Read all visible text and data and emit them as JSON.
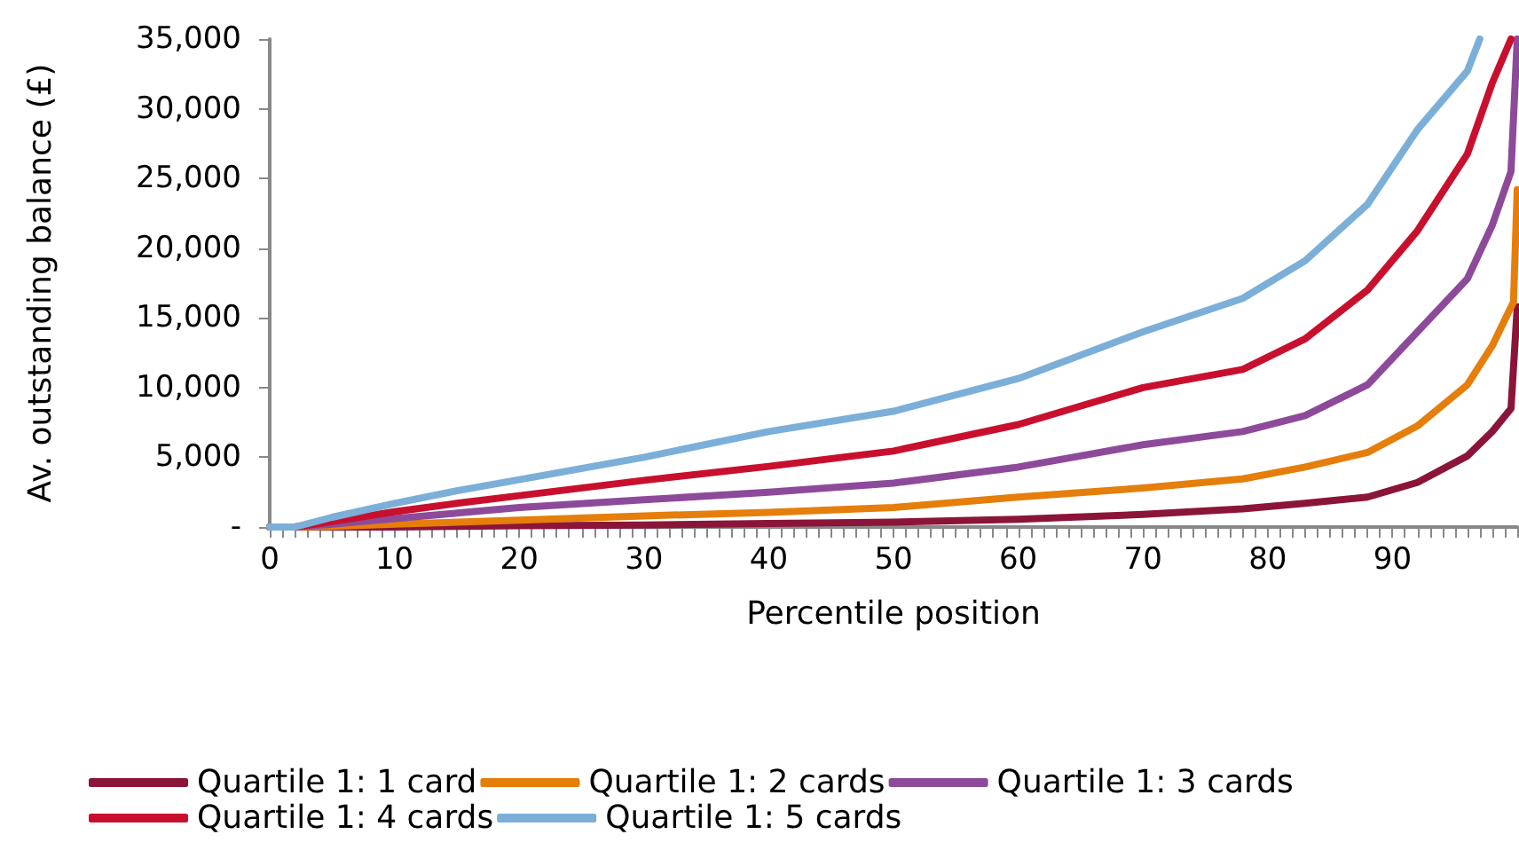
{
  "chart_data": {
    "type": "line",
    "xlabel": "Percentile position",
    "ylabel": "Av. outstanding balance (£)",
    "xlim": [
      0,
      100
    ],
    "xticks": [
      0,
      {
        "value": 1,
        "label": null
      },
      {
        "value": 2,
        "label": null
      },
      {
        "value": 3,
        "label": null
      },
      {
        "value": 4,
        "label": null
      },
      {
        "value": 5,
        "label": null
      },
      {
        "value": 6,
        "label": null
      },
      {
        "value": 7,
        "label": null
      },
      {
        "value": 8,
        "label": null
      },
      {
        "value": 9,
        "label": null
      },
      10,
      {
        "value": 11,
        "label": null
      },
      {
        "value": 12,
        "label": null
      },
      {
        "value": 13,
        "label": null
      },
      {
        "value": 14,
        "label": null
      },
      {
        "value": 15,
        "label": null
      },
      {
        "value": 16,
        "label": null
      },
      {
        "value": 17,
        "label": null
      },
      {
        "value": 18,
        "label": null
      },
      {
        "value": 19,
        "label": null
      },
      20,
      {
        "value": 21,
        "label": null
      },
      {
        "value": 22,
        "label": null
      },
      {
        "value": 23,
        "label": null
      },
      {
        "value": 24,
        "label": null
      },
      {
        "value": 25,
        "label": null
      },
      {
        "value": 26,
        "label": null
      },
      {
        "value": 27,
        "label": null
      },
      {
        "value": 28,
        "label": null
      },
      {
        "value": 29,
        "label": null
      },
      30,
      {
        "value": 31,
        "label": null
      },
      {
        "value": 32,
        "label": null
      },
      {
        "value": 33,
        "label": null
      },
      {
        "value": 34,
        "label": null
      },
      {
        "value": 35,
        "label": null
      },
      {
        "value": 36,
        "label": null
      },
      {
        "value": 37,
        "label": null
      },
      {
        "value": 38,
        "label": null
      },
      {
        "value": 39,
        "label": null
      },
      40,
      {
        "value": 41,
        "label": null
      },
      {
        "value": 42,
        "label": null
      },
      {
        "value": 43,
        "label": null
      },
      {
        "value": 44,
        "label": null
      },
      {
        "value": 45,
        "label": null
      },
      {
        "value": 46,
        "label": null
      },
      {
        "value": 47,
        "label": null
      },
      {
        "value": 48,
        "label": null
      },
      {
        "value": 49,
        "label": null
      },
      50,
      {
        "value": 51,
        "label": null
      },
      {
        "value": 52,
        "label": null
      },
      {
        "value": 53,
        "label": null
      },
      {
        "value": 54,
        "label": null
      },
      {
        "value": 55,
        "label": null
      },
      {
        "value": 56,
        "label": null
      },
      {
        "value": 57,
        "label": null
      },
      {
        "value": 58,
        "label": null
      },
      {
        "value": 59,
        "label": null
      },
      60,
      {
        "value": 61,
        "label": null
      },
      {
        "value": 62,
        "label": null
      },
      {
        "value": 63,
        "label": null
      },
      {
        "value": 64,
        "label": null
      },
      {
        "value": 65,
        "label": null
      },
      {
        "value": 66,
        "label": null
      },
      {
        "value": 67,
        "label": null
      },
      {
        "value": 68,
        "label": null
      },
      {
        "value": 69,
        "label": null
      },
      70,
      {
        "value": 71,
        "label": null
      },
      {
        "value": 72,
        "label": null
      },
      {
        "value": 73,
        "label": null
      },
      {
        "value": 74,
        "label": null
      },
      {
        "value": 75,
        "label": null
      },
      {
        "value": 76,
        "label": null
      },
      {
        "value": 77,
        "label": null
      },
      {
        "value": 78,
        "label": null
      },
      {
        "value": 79,
        "label": null
      },
      80,
      {
        "value": 81,
        "label": null
      },
      {
        "value": 82,
        "label": null
      },
      {
        "value": 83,
        "label": null
      },
      {
        "value": 84,
        "label": null
      },
      {
        "value": 85,
        "label": null
      },
      {
        "value": 86,
        "label": null
      },
      {
        "value": 87,
        "label": null
      },
      {
        "value": 88,
        "label": null
      },
      {
        "value": 89,
        "label": null
      },
      90,
      {
        "value": 91,
        "label": null
      },
      {
        "value": 92,
        "label": null
      },
      {
        "value": 93,
        "label": null
      },
      {
        "value": 94,
        "label": null
      },
      {
        "value": 95,
        "label": null
      },
      {
        "value": 96,
        "label": null
      },
      {
        "value": 97,
        "label": null
      },
      {
        "value": 98,
        "label": null
      },
      {
        "value": 99,
        "label": null
      },
      {
        "value": 100,
        "label": null
      }
    ],
    "ylim": [
      0,
      35000
    ],
    "yticks": [
      {
        "value": 0,
        "label": "-"
      },
      {
        "value": 5000,
        "label": "5,000"
      },
      {
        "value": 10000,
        "label": "10,000"
      },
      {
        "value": 15000,
        "label": "15,000"
      },
      {
        "value": 20000,
        "label": "20,000"
      },
      {
        "value": 25000,
        "label": "25,000"
      },
      {
        "value": 30000,
        "label": "30,000"
      },
      {
        "value": 35000,
        "label": "35,000"
      }
    ],
    "grid": false,
    "legend": "bottom",
    "marker": "none",
    "line_style": "solid",
    "series": [
      {
        "name": "Quartile 1: 1 card",
        "color": "#8b1538",
        "x": [
          0,
          2,
          5,
          10,
          15,
          20,
          30,
          40,
          50,
          60,
          70,
          78,
          83,
          88,
          92,
          96,
          98,
          99.5,
          100
        ],
        "values": [
          0,
          0,
          0,
          0,
          50,
          100,
          150,
          250,
          350,
          550,
          900,
          1300,
          1700,
          2150,
          3200,
          5100,
          6850,
          8500,
          15800
        ]
      },
      {
        "name": "Quartile 1: 2 cards",
        "color": "#e57e0a",
        "x": [
          0,
          2,
          5,
          10,
          15,
          20,
          30,
          40,
          50,
          60,
          70,
          78,
          83,
          88,
          92,
          96,
          98,
          99.7,
          100
        ],
        "values": [
          0,
          0,
          50,
          200,
          350,
          500,
          800,
          1050,
          1400,
          2150,
          2800,
          3450,
          4300,
          5350,
          7250,
          10200,
          13000,
          16150,
          24200
        ]
      },
      {
        "name": "Quartile 1: 3 cards",
        "color": "#8e4a9a",
        "x": [
          0,
          2,
          5,
          10,
          15,
          20,
          30,
          40,
          50,
          60,
          70,
          78,
          83,
          88,
          92,
          96,
          98,
          99.5,
          100
        ],
        "values": [
          0,
          0,
          200,
          600,
          1000,
          1400,
          1950,
          2500,
          3150,
          4300,
          5900,
          6850,
          8000,
          10200,
          14000,
          17800,
          21650,
          25500,
          35000
        ]
      },
      {
        "name": "Quartile 1: 4 cards",
        "color": "#c8102e",
        "x": [
          0,
          2,
          5,
          10,
          15,
          20,
          30,
          40,
          50,
          60,
          70,
          78,
          83,
          88,
          92,
          96,
          98,
          99.5
        ],
        "values": [
          0,
          0,
          400,
          1100,
          1700,
          2250,
          3350,
          4350,
          5450,
          7350,
          10000,
          11300,
          13500,
          17000,
          21250,
          26750,
          31850,
          35000
        ]
      },
      {
        "name": "Quartile 1: 5 cards",
        "color": "#7bafd8",
        "x": [
          0,
          2,
          5,
          10,
          15,
          20,
          30,
          40,
          50,
          60,
          70,
          78,
          83,
          88,
          92,
          96,
          97
        ],
        "values": [
          0,
          0,
          700,
          1700,
          2600,
          3400,
          5000,
          6850,
          8300,
          10650,
          14000,
          16400,
          19100,
          23150,
          28500,
          32700,
          35000
        ]
      }
    ]
  }
}
